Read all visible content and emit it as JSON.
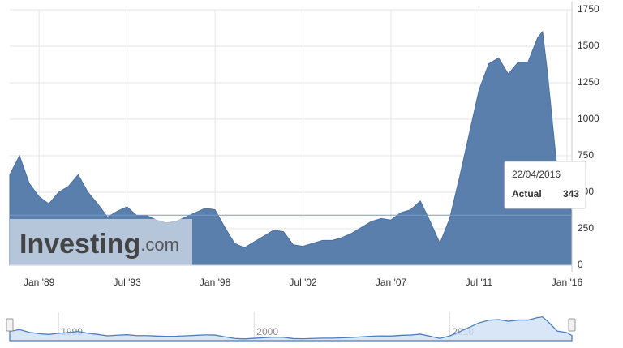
{
  "chart_data": {
    "type": "area",
    "color": "#5b7fad",
    "x": [
      "1987-07",
      "1988-01",
      "1988-07",
      "1989-01",
      "1989-07",
      "1990-01",
      "1990-07",
      "1991-01",
      "1991-07",
      "1992-01",
      "1992-07",
      "1993-01",
      "1993-07",
      "1994-01",
      "1994-07",
      "1995-01",
      "1995-07",
      "1996-01",
      "1996-07",
      "1997-01",
      "1997-07",
      "1998-01",
      "1998-07",
      "1999-01",
      "1999-07",
      "2000-01",
      "2000-07",
      "2001-01",
      "2001-07",
      "2002-01",
      "2002-07",
      "2003-01",
      "2003-07",
      "2004-01",
      "2004-07",
      "2005-01",
      "2005-07",
      "2006-01",
      "2006-07",
      "2007-01",
      "2007-07",
      "2008-01",
      "2008-07",
      "2009-01",
      "2009-07",
      "2010-01",
      "2010-07",
      "2011-01",
      "2011-07",
      "2012-01",
      "2012-07",
      "2013-01",
      "2013-07",
      "2014-01",
      "2014-07",
      "2014-10",
      "2015-01",
      "2015-07",
      "2016-01",
      "2016-04"
    ],
    "values": [
      620,
      750,
      560,
      470,
      420,
      500,
      540,
      620,
      500,
      420,
      330,
      370,
      400,
      340,
      340,
      310,
      290,
      300,
      330,
      360,
      390,
      380,
      260,
      150,
      120,
      160,
      200,
      240,
      230,
      140,
      130,
      150,
      170,
      170,
      190,
      220,
      260,
      300,
      320,
      310,
      360,
      380,
      440,
      300,
      150,
      320,
      600,
      900,
      1200,
      1380,
      1420,
      1310,
      1390,
      1390,
      1560,
      1600,
      1320,
      650,
      540,
      343
    ],
    "xlim": [
      "1987-07",
      "2016-04"
    ],
    "xticks": [
      {
        "value": "1989-01",
        "label": "Jan '89"
      },
      {
        "value": "1993-07",
        "label": "Jul '93"
      },
      {
        "value": "1998-01",
        "label": "Jan '98"
      },
      {
        "value": "2002-07",
        "label": "Jul '02"
      },
      {
        "value": "2007-01",
        "label": "Jan '07"
      },
      {
        "value": "2011-07",
        "label": "Jul '11"
      },
      {
        "value": "2016-01",
        "label": "Jan '16"
      }
    ],
    "ylim": [
      0,
      1750
    ],
    "yticks": [
      0,
      250,
      500,
      750,
      1000,
      1250,
      1500,
      1750
    ],
    "grid": true,
    "tooltip": {
      "date": "22/04/2016",
      "label": "Actual"
    },
    "watermark": {
      "brand": "Investing",
      "suffix": ".com"
    },
    "navigator_ticks": [
      {
        "value": "1990-01",
        "label": "1990"
      },
      {
        "value": "2000-01",
        "label": "2000"
      },
      {
        "value": "2010-01",
        "label": "2010"
      }
    ]
  }
}
